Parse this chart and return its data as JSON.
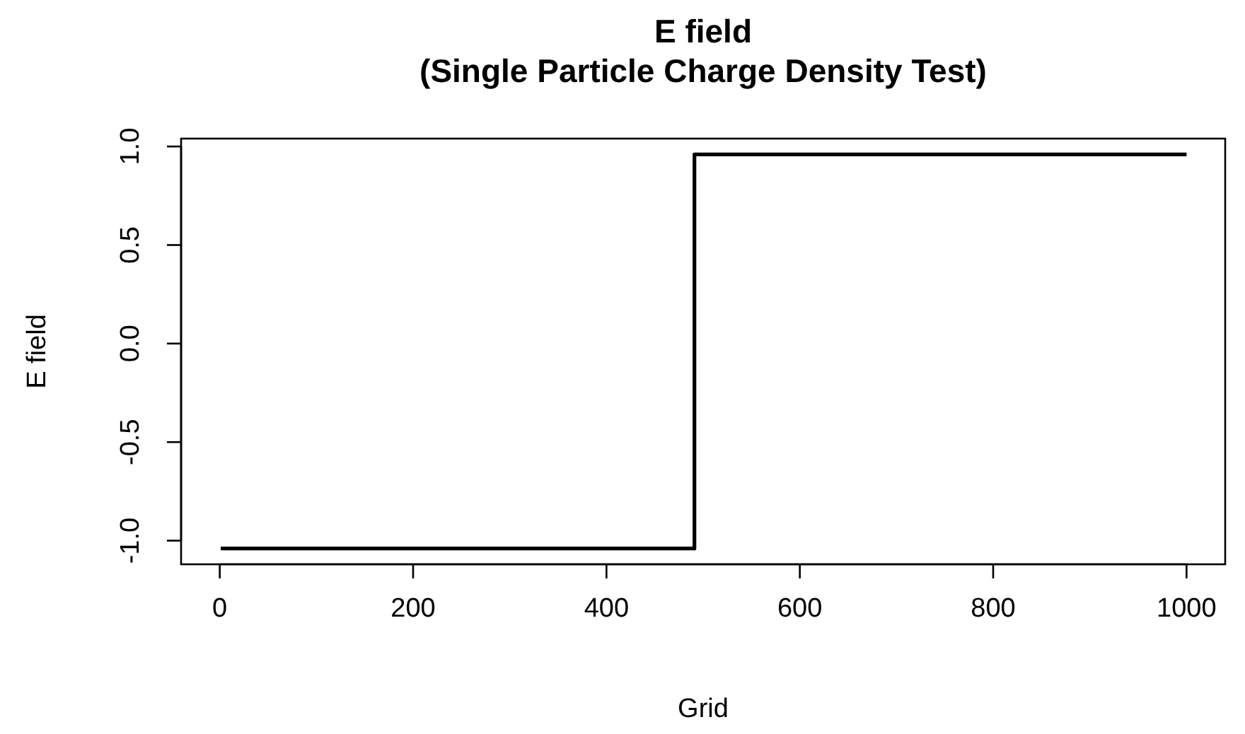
{
  "chart_data": {
    "type": "step",
    "title": "E field",
    "subtitle": "(Single Particle Charge Density Test)",
    "xlabel": "Grid",
    "ylabel": "E field",
    "series": [
      {
        "color": "#000000",
        "x": [
          1,
          491,
          1000
        ],
        "values": [
          -1.04,
          0.96,
          0.96
        ]
      }
    ],
    "xlim": [
      -40,
      1040
    ],
    "ylim": [
      -1.12,
      1.04
    ],
    "xticks": [
      0,
      200,
      400,
      600,
      800,
      1000
    ],
    "yticks": [
      {
        "value": -1,
        "label": "-1.0"
      },
      {
        "value": -0.5,
        "label": "-0.5"
      },
      {
        "value": 0,
        "label": "0.0"
      },
      {
        "value": 0.5,
        "label": "0.5"
      },
      {
        "value": 1,
        "label": "1.0"
      }
    ],
    "grid": false
  }
}
